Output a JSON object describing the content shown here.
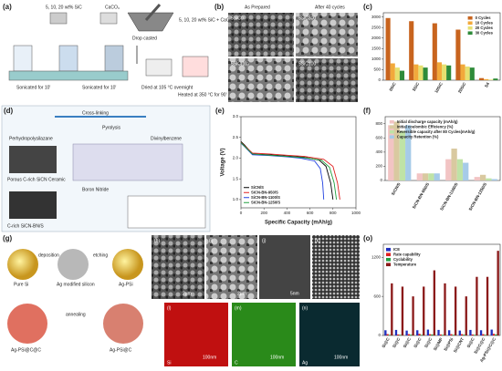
{
  "panel_a": {
    "label": "(a)",
    "texts": [
      "5, 10, 20 wt% SiC",
      "CaCO₃",
      "5, 10, 20 wt% SiC + CaCO₃",
      "Sonicated for 10'",
      "Sonicated for 10'",
      "Drop casted",
      "Dried at 105 °C overnight",
      "Heated at 350 °C for 90'"
    ]
  },
  "panel_b": {
    "label": "(b)",
    "texts": [
      "As Prepared",
      "After 40 cycles",
      "5SiC0",
      "5SiC300",
      "5SiC(10)",
      "5SiC100"
    ]
  },
  "panel_d": {
    "label": "(d)",
    "texts": [
      "Perhydropolysilazane",
      "Cross-linking",
      "Divinylbenzene",
      "Pyrolysis",
      "Porous C-rich SiCN Ceramic",
      "Boron Nitride",
      "C-rich SiCN-BN/S"
    ]
  },
  "panel_g": {
    "label": "(g)",
    "texts": [
      "Pure Si",
      "Ag modified silicon",
      "Ag-PSi",
      "Ag-PSi@C@C",
      "Ag-PSi@C",
      "deposition",
      "etching",
      "annealing"
    ]
  },
  "images": [
    {
      "label": "(h)",
      "scale": "2μm"
    },
    {
      "label": "(i)",
      "scale": "2μm"
    },
    {
      "label": "(j)",
      "scale": "5nm"
    },
    {
      "label": "(k)"
    },
    {
      "label": "(l)",
      "scale": "100nm",
      "element": "Si"
    },
    {
      "label": "(m)",
      "scale": "100nm",
      "element": "C"
    },
    {
      "label": "(n)",
      "scale": "100nm",
      "element": "Ag"
    }
  ],
  "chart_data": [
    {
      "type": "bar",
      "label": "(c)",
      "categories": [
        "0SiC",
        "5SiC",
        "10SiC",
        "20SiC",
        "S4"
      ],
      "series": [
        {
          "name": "0 Cycles",
          "color": "#c8641e",
          "values": [
            2950,
            2800,
            2700,
            2400,
            100
          ]
        },
        {
          "name": "10 Cycles",
          "color": "#f2a93b",
          "values": [
            800,
            750,
            850,
            750,
            50
          ]
        },
        {
          "name": "20 Cycles",
          "color": "#e6e070",
          "values": [
            600,
            700,
            750,
            650,
            30
          ]
        },
        {
          "name": "30 Cycles",
          "color": "#2e8b3a",
          "values": [
            450,
            600,
            700,
            600,
            80
          ]
        }
      ],
      "ylim": [
        0,
        3200
      ],
      "yticks": [
        0,
        500,
        1000,
        1500,
        2000,
        2500,
        3000
      ],
      "legend": "upper right"
    },
    {
      "type": "line",
      "label": "(e)",
      "xlabel": "Specific Capacity (mAh/g)",
      "ylabel": "Voltage (V)",
      "xlim": [
        0,
        1000
      ],
      "xticks": [
        0,
        200,
        400,
        600,
        800,
        1000
      ],
      "ylim": [
        0.8,
        3.0
      ],
      "yticks": [
        {
          "value": 1,
          "label": "1.0"
        },
        1.5,
        {
          "value": 2,
          "label": "2.0"
        },
        2.5,
        {
          "value": 3,
          "label": "3.0"
        }
      ],
      "series": [
        {
          "name": "SiCN/S",
          "color": "#000000",
          "x": [
            0,
            30,
            100,
            250,
            400,
            550,
            680,
            740,
            780,
            800
          ],
          "values": [
            2.4,
            2.32,
            2.1,
            2.08,
            2.05,
            2.02,
            1.95,
            1.8,
            1.4,
            1.0
          ]
        },
        {
          "name": "SiCN-BN-950/S",
          "color": "#e02020",
          "x": [
            0,
            30,
            100,
            250,
            400,
            550,
            720,
            800,
            840,
            860
          ],
          "values": [
            2.38,
            2.3,
            2.12,
            2.1,
            2.07,
            2.04,
            1.97,
            1.8,
            1.4,
            1.0
          ]
        },
        {
          "name": "SiCN-BN-1100/S",
          "color": "#2040e0",
          "x": [
            0,
            30,
            100,
            250,
            400,
            520,
            640,
            690,
            710,
            720
          ],
          "values": [
            2.36,
            2.28,
            2.08,
            2.06,
            2.03,
            2.0,
            1.93,
            1.75,
            1.4,
            1.0
          ]
        },
        {
          "name": "SiCN-BN-1250/S",
          "color": "#20a040",
          "x": [
            0,
            30,
            100,
            250,
            400,
            550,
            700,
            770,
            810,
            830
          ],
          "values": [
            2.37,
            2.29,
            2.1,
            2.07,
            2.04,
            2.01,
            1.95,
            1.78,
            1.4,
            1.0
          ]
        }
      ],
      "legend": "lower left"
    },
    {
      "type": "bar",
      "label": "(f)",
      "categories": [
        "SiCN/S",
        "SiCN-BN-950/S",
        "SiCN-BN-1100/S",
        "SiCN-BN-1250/S"
      ],
      "series": [
        {
          "name": "Initial discharge capacity (mAh/g)",
          "color": "#f2c4c4",
          "values": [
            780,
            100,
            300,
            50
          ]
        },
        {
          "name": "Initial coulombic Efficiency (%)",
          "color": "#d9c9a0",
          "values": [
            830,
            100,
            450,
            80
          ]
        },
        {
          "name": "Reversible capacity after 80 Cycles(mAh/g)",
          "color": "#bfe3a6",
          "values": [
            700,
            100,
            300,
            30
          ]
        },
        {
          "name": "Capacity Retention (%)",
          "color": "#a6cbe8",
          "values": [
            780,
            100,
            250,
            20
          ]
        }
      ],
      "ylim": [
        0,
        900
      ],
      "yticks": [
        0,
        200,
        400,
        600,
        800
      ],
      "legend": "upper right"
    },
    {
      "type": "bar",
      "label": "(o)",
      "categories": [
        "Si@C",
        "Si@C",
        "Si@C",
        "Si@C",
        "Si@C",
        "Si@MP",
        "Si@PSi",
        "Si@CNT",
        "Si@C",
        "Si@C@C",
        "Ag-PSi@C@C"
      ],
      "series": [
        {
          "name": "ICE",
          "color": "#2030c0",
          "values": [
            80,
            85,
            75,
            80,
            90,
            85,
            80,
            75,
            85,
            80,
            90
          ]
        },
        {
          "name": "Rate capability",
          "color": "#e02020",
          "values": [
            20,
            15,
            20,
            25,
            20,
            15,
            20,
            20,
            15,
            20,
            25
          ]
        },
        {
          "name": "Cyclability",
          "color": "#20a040",
          "values": [
            10,
            10,
            12,
            10,
            15,
            10,
            10,
            12,
            10,
            10,
            15
          ]
        },
        {
          "name": "Temperature",
          "color": "#8b1a1a",
          "values": [
            800,
            750,
            600,
            750,
            1000,
            800,
            750,
            600,
            900,
            900,
            1300
          ]
        }
      ],
      "ylim": [
        0,
        1400
      ],
      "yticks": [
        0,
        600,
        1200
      ],
      "legend": "upper left"
    }
  ]
}
